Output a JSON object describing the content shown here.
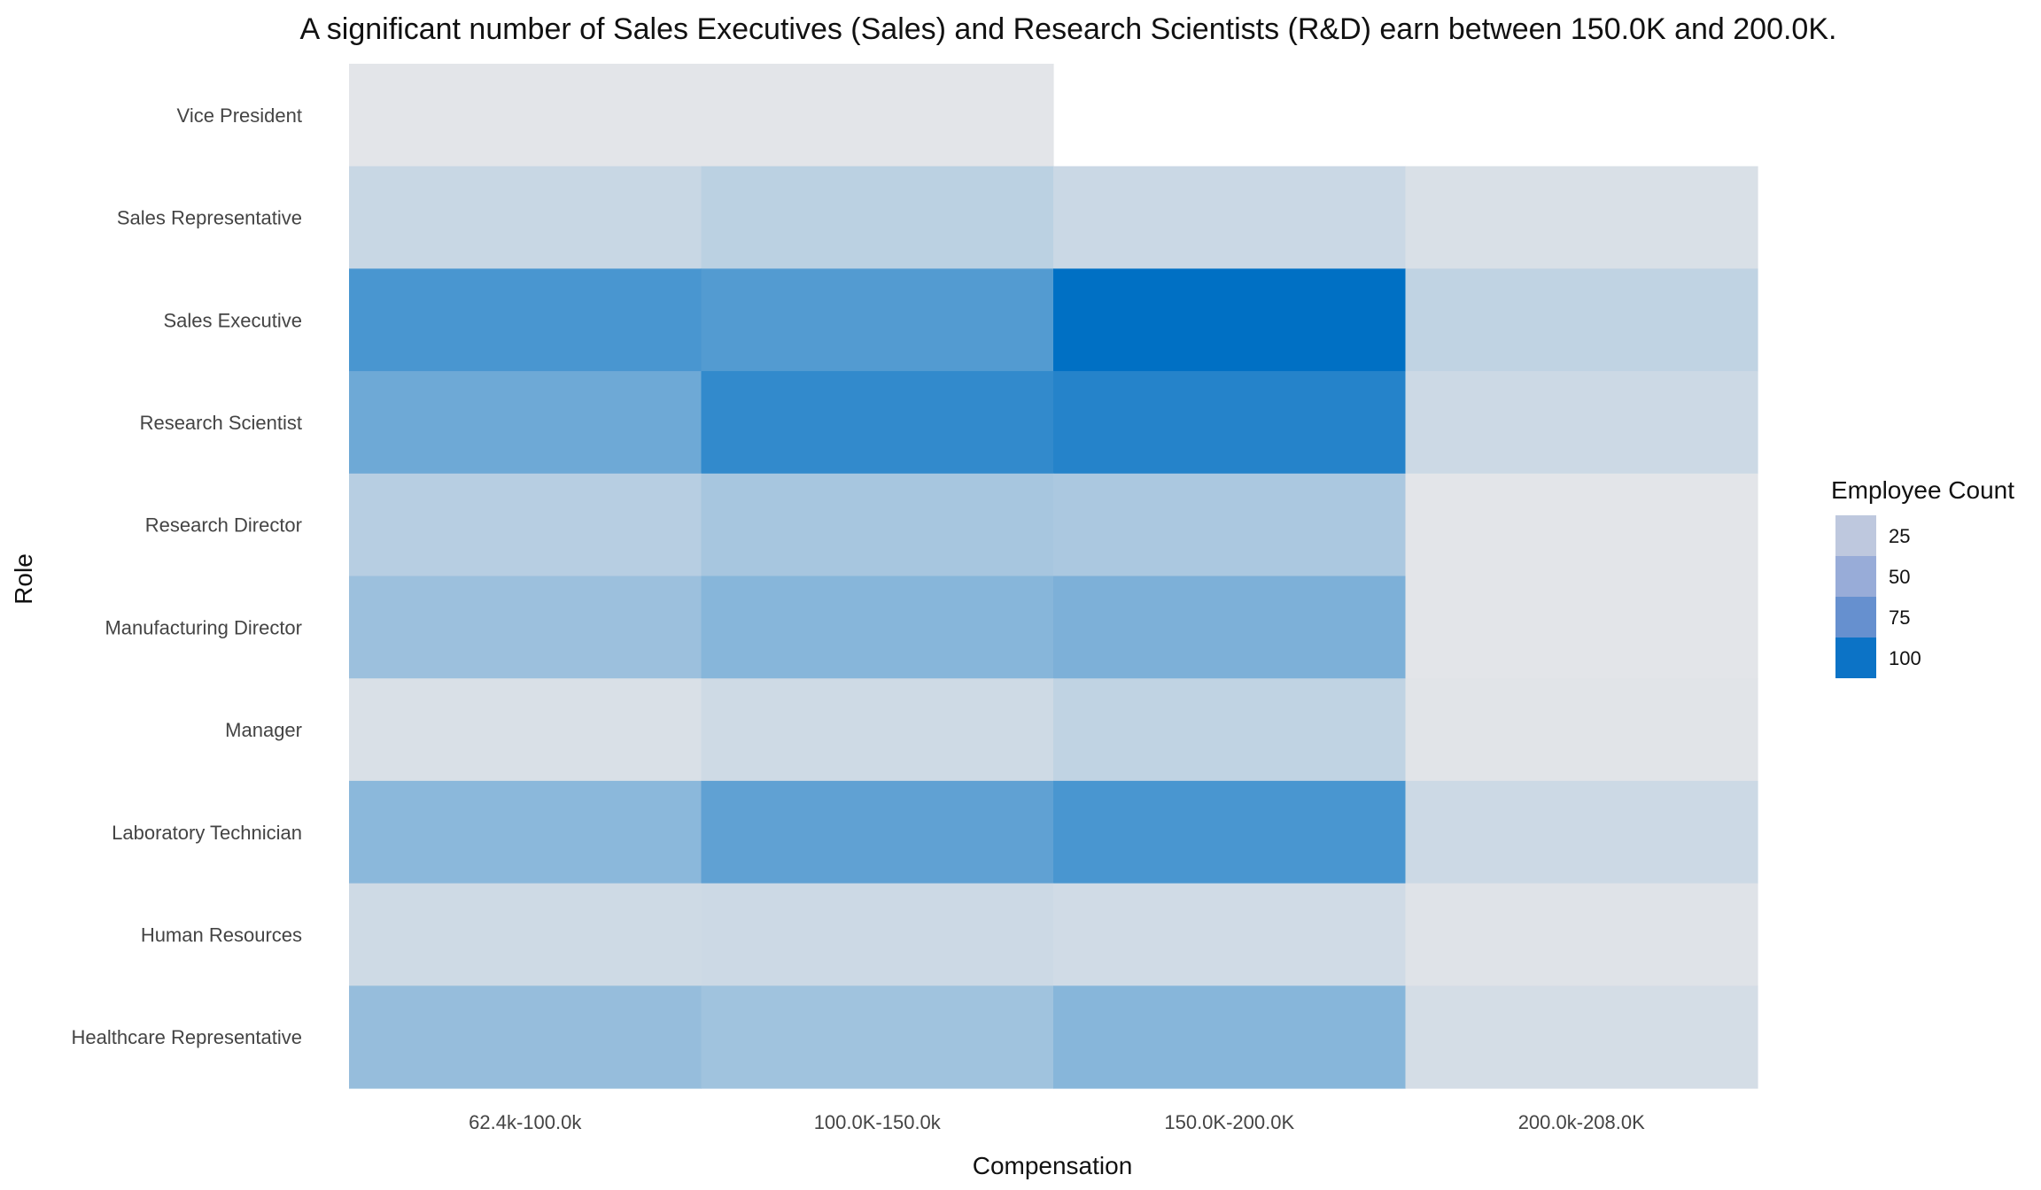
{
  "chart_data": {
    "type": "heatmap",
    "title": "A significant number of Sales Executives (Sales) and Research Scientists (R&D) earn between 150.0K and 200.0K.",
    "xlabel": "Compensation",
    "ylabel": "Role",
    "x_categories": [
      "62.4k-100.0k",
      "100.0K-150.0k",
      "150.0K-200.0K",
      "200.0k-208.0K"
    ],
    "y_categories": [
      "Vice President",
      "Sales Representative",
      "Sales Executive",
      "Research Scientist",
      "Research Director",
      "Manufacturing Director",
      "Manager",
      "Laboratory Technician",
      "Human Resources",
      "Healthcare Representative"
    ],
    "values": [
      [
        1,
        1,
        null,
        null
      ],
      [
        14,
        20,
        13,
        6
      ],
      [
        75,
        70,
        110,
        18
      ],
      [
        57,
        86,
        92,
        12
      ],
      [
        22,
        30,
        28,
        1
      ],
      [
        35,
        45,
        50,
        1
      ],
      [
        6,
        11,
        18,
        2
      ],
      [
        43,
        64,
        75,
        12
      ],
      [
        11,
        12,
        10,
        3
      ],
      [
        38,
        33,
        45,
        8
      ]
    ],
    "legend": {
      "title": "Employee Count",
      "entries": [
        25,
        50,
        75,
        100
      ],
      "colors": [
        "#bec8de",
        "#98acd8",
        "#6690cf",
        "#0c73c6"
      ],
      "placement": "right"
    },
    "color_scale": {
      "low": "#e5e6e9",
      "high": "#0070c4",
      "min": 0,
      "max": 110
    },
    "grid": false
  }
}
